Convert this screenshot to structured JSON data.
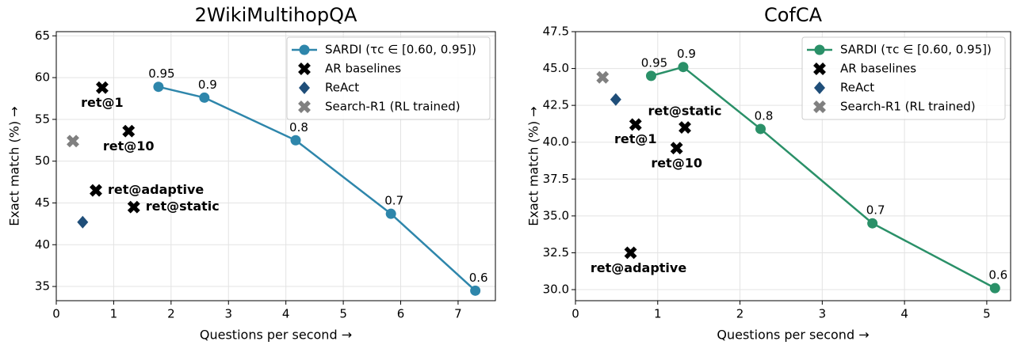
{
  "chart_data": [
    {
      "type": "line",
      "title": "2WikiMultihopQA",
      "x_label": "Questions per second →",
      "y_label": "Exact match (%) →",
      "xlim": [
        0,
        7.65
      ],
      "xticks": [
        0,
        1,
        2,
        3,
        4,
        5,
        6,
        7
      ],
      "ylim": [
        33.3,
        65.5
      ],
      "yticks": [
        35,
        40,
        45,
        50,
        55,
        60,
        65
      ],
      "grid": true,
      "legend": "upper right",
      "series": [
        {
          "name": "SARDI (τc ∈ [0.60, 0.95])",
          "color": "#2e86ab",
          "marker": "circle",
          "line": true,
          "x": [
            1.78,
            2.58,
            4.17,
            5.83,
            7.3
          ],
          "values": [
            58.9,
            57.6,
            52.5,
            43.7,
            34.5
          ],
          "labels": [
            "0.95",
            "0.9",
            "0.8",
            "0.7",
            "0.6"
          ]
        },
        {
          "name": "AR baselines",
          "color": "#000000",
          "marker": "x",
          "line": false,
          "x": [
            0.8,
            1.26,
            0.69,
            1.35
          ],
          "values": [
            58.8,
            53.6,
            46.5,
            44.5
          ],
          "labels": [
            "ret@1",
            "ret@10",
            "ret@adaptive",
            "ret@static"
          ]
        },
        {
          "name": "ReAct",
          "color": "#1f4e79",
          "marker": "diamond",
          "line": false,
          "x": [
            0.46
          ],
          "values": [
            42.7
          ]
        },
        {
          "name": "Search-R1 (RL trained)",
          "color": "#808080",
          "marker": "x",
          "line": false,
          "x": [
            0.29
          ],
          "values": [
            52.4
          ]
        }
      ]
    },
    {
      "type": "line",
      "title": "CofCA",
      "x_label": "Questions per second →",
      "y_label": "Exact match (%) →",
      "xlim": [
        0,
        5.29
      ],
      "xticks": [
        0,
        1,
        2,
        3,
        4,
        5
      ],
      "ylim": [
        29.25,
        47.5
      ],
      "yticks": [
        {
          "value": 30,
          "label": "30.0"
        },
        {
          "value": 32.5,
          "label": "32.5"
        },
        {
          "value": 35,
          "label": "35.0"
        },
        {
          "value": 37.5,
          "label": "37.5"
        },
        {
          "value": 40,
          "label": "40.0"
        },
        {
          "value": 42.5,
          "label": "42.5"
        },
        {
          "value": 45,
          "label": "45.0"
        },
        {
          "value": 47.5,
          "label": "47.5"
        }
      ],
      "grid": true,
      "legend": "upper right",
      "series": [
        {
          "name": "SARDI (τc ∈ [0.60, 0.95])",
          "color": "#2a9068",
          "marker": "circle",
          "line": true,
          "x": [
            0.92,
            1.31,
            2.25,
            3.61,
            5.1
          ],
          "values": [
            44.5,
            45.1,
            40.9,
            34.5,
            30.1
          ],
          "labels": [
            "0.95",
            "0.9",
            "0.8",
            "0.7",
            "0.6"
          ]
        },
        {
          "name": "AR baselines",
          "color": "#000000",
          "marker": "x",
          "line": false,
          "x": [
            0.73,
            1.33,
            1.23,
            0.67
          ],
          "values": [
            41.2,
            41.0,
            39.6,
            32.5
          ],
          "labels": [
            "ret@1",
            "ret@static",
            "ret@10",
            "ret@adaptive"
          ]
        },
        {
          "name": "ReAct",
          "color": "#1f4e79",
          "marker": "diamond",
          "line": false,
          "x": [
            0.49
          ],
          "values": [
            42.9
          ]
        },
        {
          "name": "Search-R1 (RL trained)",
          "color": "#808080",
          "marker": "x",
          "line": false,
          "x": [
            0.33
          ],
          "values": [
            44.4
          ]
        }
      ]
    }
  ]
}
